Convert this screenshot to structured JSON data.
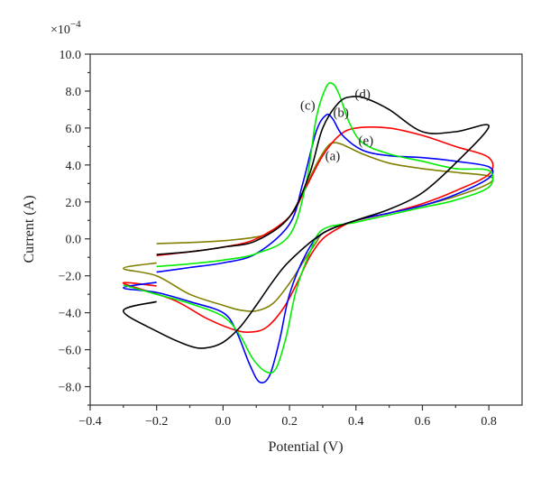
{
  "chart_data": {
    "type": "line",
    "title": "",
    "xlabel": "Potential (V)",
    "ylabel": "Current (A)",
    "y_multiplier_label": "×10",
    "y_multiplier_exponent": "−4",
    "xlim": [
      -0.4,
      0.9
    ],
    "ylim": [
      -9,
      10
    ],
    "xticks": [
      -0.4,
      -0.2,
      0.0,
      0.2,
      0.4,
      0.6,
      0.8
    ],
    "xtick_labels": [
      "−0.4",
      "−0.2",
      "0.0",
      "0.2",
      "0.4",
      "0.6",
      "0.8"
    ],
    "yticks": [
      -8,
      -6,
      -4,
      -2,
      0,
      2,
      4,
      6,
      8,
      10
    ],
    "ytick_labels": [
      "−8.0",
      "−6.0",
      "−4.0",
      "−2.0",
      "0.0",
      "2.0",
      "4.0",
      "6.0",
      "8.0",
      "10.0"
    ],
    "grid": false,
    "legend": "none",
    "annotations": [
      {
        "text": "(a)",
        "x": 0.33,
        "y": 4.25
      },
      {
        "text": "(b)",
        "x": 0.355,
        "y": 6.6
      },
      {
        "text": "(c)",
        "x": 0.255,
        "y": 7.0
      },
      {
        "text": "(d)",
        "x": 0.42,
        "y": 7.6
      },
      {
        "text": "(e)",
        "x": 0.43,
        "y": 5.1
      }
    ],
    "series": [
      {
        "color": "#808000",
        "x": [
          -0.2,
          -0.1,
          0.0,
          0.1,
          0.15,
          0.2,
          0.24,
          0.28,
          0.31,
          0.33,
          0.36,
          0.42,
          0.5,
          0.6,
          0.7,
          0.8,
          0.8,
          0.7,
          0.6,
          0.5,
          0.4,
          0.35,
          0.3,
          0.28,
          0.25,
          0.2,
          0.15,
          0.1,
          0.05,
          0.0,
          -0.1,
          -0.2,
          -0.3,
          -0.2
        ],
        "y": [
          -0.25,
          -0.2,
          -0.1,
          0.1,
          0.4,
          1.2,
          2.5,
          4.0,
          4.9,
          5.2,
          5.1,
          4.6,
          4.1,
          3.8,
          3.6,
          3.4,
          3.0,
          2.3,
          1.8,
          1.4,
          1.0,
          0.7,
          0.3,
          -0.2,
          -1.0,
          -2.4,
          -3.5,
          -3.9,
          -3.85,
          -3.6,
          -3.0,
          -2.0,
          -1.6,
          -1.3
        ]
      },
      {
        "color": "#ff0000",
        "x": [
          -0.2,
          -0.1,
          0.0,
          0.1,
          0.2,
          0.25,
          0.3,
          0.35,
          0.4,
          0.5,
          0.6,
          0.7,
          0.8,
          0.8,
          0.7,
          0.6,
          0.5,
          0.4,
          0.35,
          0.3,
          0.26,
          0.22,
          0.18,
          0.13,
          0.08,
          0.03,
          -0.05,
          -0.15,
          -0.3,
          -0.2
        ],
        "y": [
          -0.9,
          -0.7,
          -0.45,
          0.0,
          1.2,
          2.8,
          4.5,
          5.6,
          6.0,
          6.0,
          5.6,
          5.0,
          4.4,
          3.5,
          2.6,
          1.9,
          1.4,
          1.0,
          0.6,
          0.0,
          -1.0,
          -2.5,
          -3.8,
          -4.8,
          -5.05,
          -4.9,
          -4.3,
          -3.3,
          -2.4,
          -2.55
        ]
      },
      {
        "color": "#0000ff",
        "x": [
          -0.2,
          -0.1,
          0.0,
          0.1,
          0.2,
          0.24,
          0.28,
          0.31,
          0.33,
          0.36,
          0.42,
          0.5,
          0.6,
          0.7,
          0.8,
          0.8,
          0.7,
          0.6,
          0.5,
          0.4,
          0.3,
          0.25,
          0.2,
          0.17,
          0.14,
          0.11,
          0.08,
          0.04,
          0.0,
          -0.1,
          -0.2,
          -0.3,
          -0.2
        ],
        "y": [
          -1.8,
          -1.55,
          -1.3,
          -0.8,
          0.8,
          3.0,
          5.8,
          6.7,
          6.5,
          5.6,
          4.8,
          4.5,
          4.4,
          4.2,
          3.9,
          3.3,
          2.4,
          1.8,
          1.4,
          1.0,
          0.3,
          -0.8,
          -3.0,
          -5.5,
          -7.4,
          -7.75,
          -6.8,
          -5.0,
          -4.0,
          -3.4,
          -2.9,
          -2.65,
          -2.35
        ]
      },
      {
        "color": "#00ee00",
        "x": [
          -0.2,
          -0.1,
          0.0,
          0.1,
          0.2,
          0.25,
          0.28,
          0.31,
          0.33,
          0.35,
          0.38,
          0.42,
          0.5,
          0.6,
          0.7,
          0.8,
          0.8,
          0.7,
          0.6,
          0.5,
          0.4,
          0.3,
          0.26,
          0.22,
          0.19,
          0.16,
          0.13,
          0.09,
          0.05,
          0.0,
          -0.1,
          -0.2,
          -0.3
        ],
        "y": [
          -1.5,
          -1.35,
          -1.15,
          -0.8,
          0.2,
          3.0,
          6.5,
          8.2,
          8.4,
          7.8,
          6.3,
          5.2,
          4.6,
          4.2,
          3.8,
          3.7,
          2.8,
          2.1,
          1.7,
          1.3,
          0.9,
          0.5,
          -0.8,
          -2.8,
          -5.3,
          -7.0,
          -7.2,
          -6.5,
          -5.2,
          -4.2,
          -3.5,
          -3.0,
          -2.5
        ]
      },
      {
        "color": "#000000",
        "x": [
          -0.2,
          -0.1,
          0.0,
          0.1,
          0.2,
          0.26,
          0.3,
          0.35,
          0.39,
          0.43,
          0.5,
          0.6,
          0.7,
          0.8,
          0.7,
          0.6,
          0.5,
          0.4,
          0.3,
          0.2,
          0.15,
          0.1,
          0.05,
          0.0,
          -0.05,
          -0.1,
          -0.2,
          -0.3,
          -0.2
        ],
        "y": [
          -0.85,
          -0.7,
          -0.45,
          -0.1,
          1.2,
          3.5,
          6.0,
          7.4,
          7.7,
          7.6,
          7.0,
          5.8,
          5.8,
          6.1,
          4.1,
          2.5,
          1.6,
          1.0,
          0.3,
          -1.2,
          -2.3,
          -3.6,
          -4.8,
          -5.6,
          -5.9,
          -5.8,
          -5.0,
          -3.9,
          -3.4
        ]
      }
    ]
  }
}
